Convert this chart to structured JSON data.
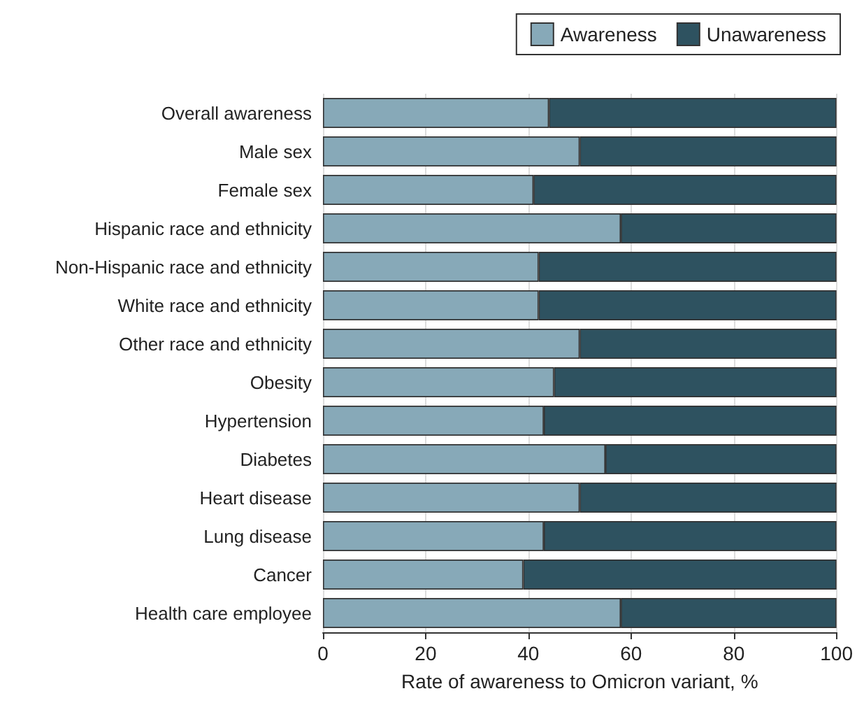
{
  "chart_data": {
    "type": "bar",
    "orientation": "horizontal",
    "stacked": true,
    "xlabel": "Rate of awareness to Omicron variant, %",
    "categories": [
      "Overall awareness",
      "Male sex",
      "Female sex",
      "Hispanic race and ethnicity",
      "Non-Hispanic race and ethnicity",
      "White race and ethnicity",
      "Other race and ethnicity",
      "Obesity",
      "Hypertension",
      "Diabetes",
      "Heart disease",
      "Lung disease",
      "Cancer",
      "Health care employee"
    ],
    "series": [
      {
        "name": "Awareness",
        "color": "#87a9b8",
        "values": [
          44,
          50,
          41,
          58,
          42,
          42,
          50,
          45,
          43,
          55,
          50,
          43,
          39,
          58
        ]
      },
      {
        "name": "Unawareness",
        "color": "#2e5260",
        "values": [
          56,
          50,
          59,
          42,
          58,
          58,
          50,
          55,
          57,
          45,
          50,
          57,
          61,
          42
        ]
      }
    ],
    "xlim": [
      0,
      100
    ],
    "xticks": [
      0,
      20,
      40,
      60,
      80,
      100
    ],
    "grid": "x",
    "legend": "top right"
  }
}
